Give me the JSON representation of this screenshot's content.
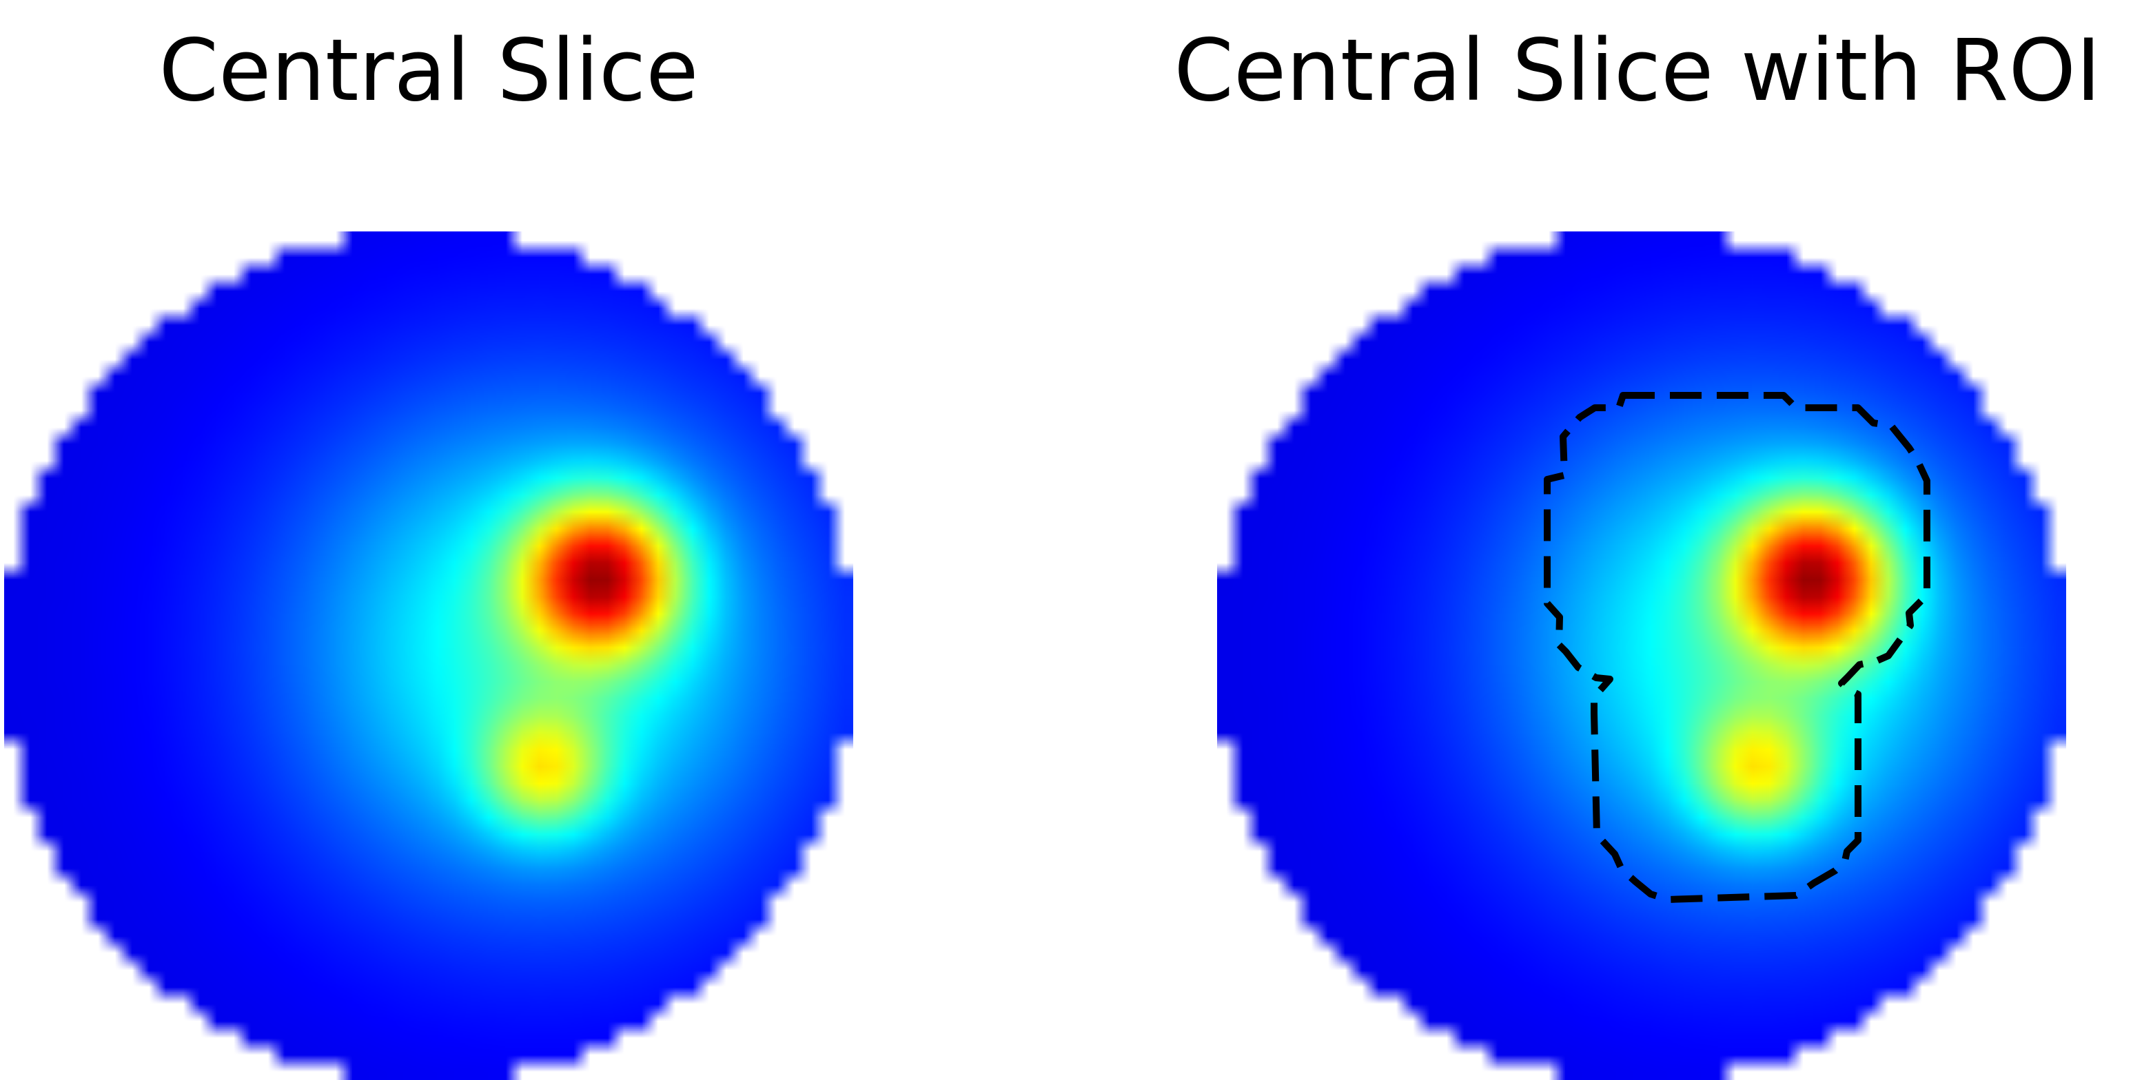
{
  "panels": [
    {
      "title": "Central Slice"
    },
    {
      "title": "Central Slice with ROI"
    }
  ],
  "image": {
    "grid_size": 50,
    "colormap": "jet",
    "background": "#ffffff",
    "hotspots": [
      {
        "label": "upper",
        "col": 34.6,
        "row": 19.8,
        "sigma": 3.2,
        "peak": 0.6
      },
      {
        "label": "lower",
        "col": 31.3,
        "row": 31.3,
        "sigma": 2.6,
        "peak": 0.3
      }
    ]
  },
  "roi": {
    "style": "dashed",
    "color": "#000000"
  }
}
